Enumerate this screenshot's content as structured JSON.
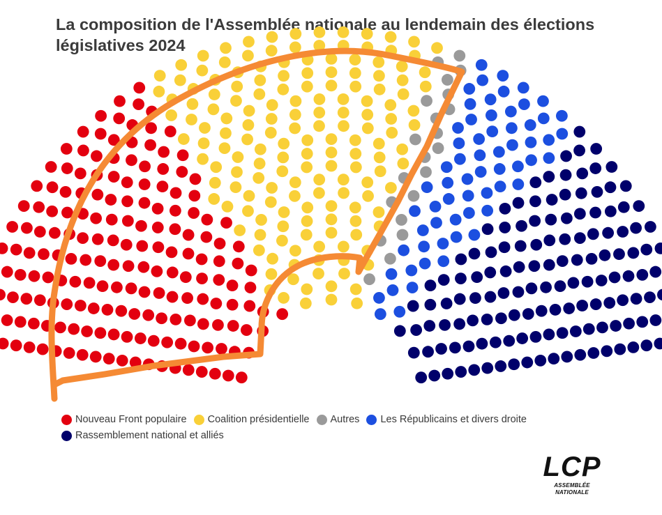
{
  "title": "La composition de l'Assemblée nationale au lendemain des élections législatives 2024",
  "chart_data": {
    "type": "hemicycle",
    "title": "La composition de l'Assemblée nationale au lendemain des élections législatives 2024",
    "total_seats": 577,
    "groups": [
      {
        "name": "Nouveau Front populaire",
        "seats": 182,
        "color": "#e3000f"
      },
      {
        "name": "Coalition présidentielle",
        "seats": 168,
        "color": "#f9d038"
      },
      {
        "name": "Autres",
        "seats": 21,
        "color": "#9a9a9a"
      },
      {
        "name": "Les Républicains et divers droite",
        "seats": 63,
        "color": "#1c4fe0"
      },
      {
        "name": "Rassemblement national et alliés",
        "seats": 143,
        "color": "#00006b"
      }
    ],
    "annotation": "Orange hand-drawn outline around Nouveau Front populaire and Coalition présidentielle",
    "annotation_color": "#f58a34"
  },
  "logo": {
    "name": "LCP",
    "subtitle": "ASSEMBLÉE NATIONALE"
  }
}
